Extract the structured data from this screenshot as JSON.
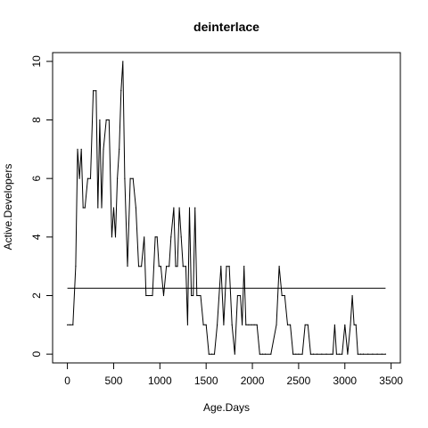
{
  "chart_data": {
    "type": "line",
    "title": "deinterlace",
    "xlabel": "Age.Days",
    "ylabel": "Active.Developers",
    "xlim": [
      -160,
      3600
    ],
    "ylim": [
      -0.3,
      10.3
    ],
    "xticks": [
      0,
      500,
      1000,
      1500,
      2000,
      2500,
      3000,
      3500
    ],
    "yticks": [
      0,
      2,
      4,
      6,
      8,
      10
    ],
    "grid": false,
    "legend": "none",
    "reference_line": {
      "y": 2.25,
      "x": [
        0,
        3440
      ]
    },
    "series": [
      {
        "x": [
          0,
          30,
          60,
          90,
          110,
          130,
          150,
          170,
          190,
          220,
          250,
          280,
          310,
          330,
          350,
          370,
          390,
          420,
          450,
          480,
          500,
          520,
          540,
          560,
          580,
          600,
          620,
          650,
          680,
          710,
          740,
          770,
          800,
          830,
          850,
          880,
          920,
          950,
          970,
          990,
          1010,
          1040,
          1070,
          1100,
          1120,
          1150,
          1170,
          1190,
          1210,
          1230,
          1250,
          1280,
          1300,
          1320,
          1340,
          1360,
          1380,
          1400,
          1420,
          1440,
          1470,
          1500,
          1530,
          1560,
          1590,
          1620,
          1660,
          1690,
          1720,
          1750,
          1780,
          1810,
          1840,
          1870,
          1890,
          1910,
          1930,
          1960,
          1990,
          2020,
          2050,
          2080,
          2110,
          2140,
          2200,
          2260,
          2290,
          2320,
          2350,
          2380,
          2410,
          2440,
          2470,
          2500,
          2540,
          2570,
          2600,
          2630,
          2660,
          2700,
          2750,
          2800,
          2850,
          2870,
          2890,
          2910,
          2940,
          2970,
          3000,
          3030,
          3060,
          3080,
          3100,
          3120,
          3140,
          3170,
          3200,
          3250,
          3300,
          3350,
          3400,
          3440
        ],
        "values": [
          1,
          1,
          1,
          3,
          7,
          6,
          7,
          5,
          5,
          6,
          6,
          9,
          9,
          5,
          8,
          5,
          7,
          8,
          8,
          4,
          5,
          4,
          6,
          7,
          9,
          10,
          6,
          3,
          6,
          6,
          5,
          3,
          3,
          4,
          2,
          2,
          2,
          4,
          4,
          3,
          3,
          2,
          3,
          3,
          4,
          5,
          3,
          3,
          5,
          4,
          3,
          3,
          1,
          5,
          2,
          2,
          5,
          2,
          2,
          2,
          1,
          1,
          0,
          0,
          0,
          1,
          3,
          1,
          3,
          3,
          1,
          0,
          2,
          2,
          1,
          3,
          1,
          1,
          1,
          1,
          1,
          0,
          0,
          0,
          0,
          1,
          3,
          2,
          2,
          1,
          1,
          0,
          0,
          0,
          0,
          1,
          1,
          0,
          0,
          0,
          0,
          0,
          0,
          0,
          1,
          0,
          0,
          0,
          1,
          0,
          1,
          2,
          1,
          1,
          0,
          0,
          0,
          0,
          0,
          0,
          0,
          0
        ]
      }
    ]
  }
}
